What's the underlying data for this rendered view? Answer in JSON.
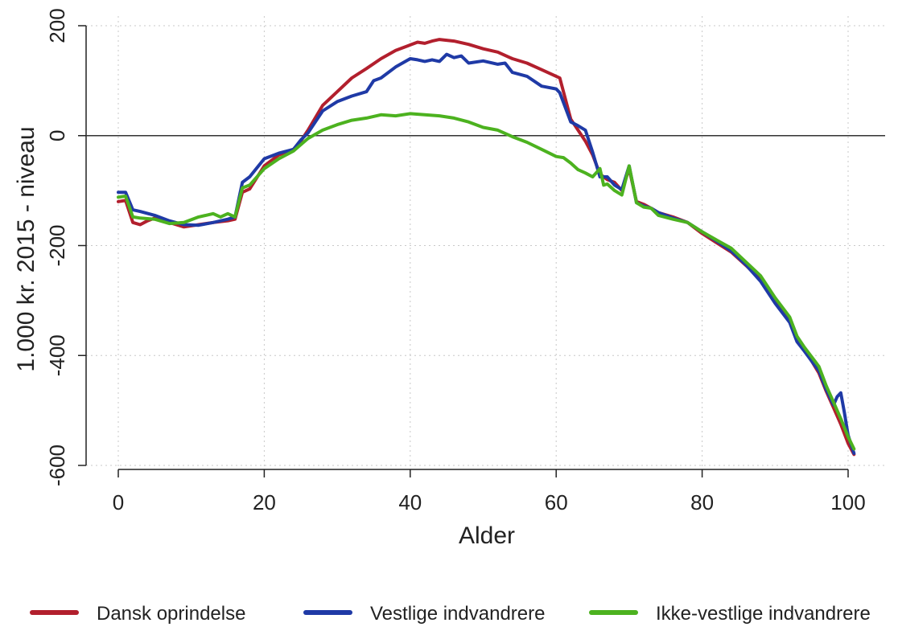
{
  "chart_data": {
    "type": "line",
    "xlabel": "Alder",
    "ylabel": "1.000 kr. 2015 - niveau",
    "xlim": [
      0,
      101
    ],
    "ylim": [
      -600,
      200
    ],
    "x_ticks": [
      0,
      20,
      40,
      60,
      80,
      100
    ],
    "y_ticks": [
      -600,
      -400,
      -200,
      0,
      200
    ],
    "grid": true,
    "reference_line": 0,
    "legend_position": "bottom",
    "series": [
      {
        "name": "Dansk oprindelse",
        "color": "#b21f2d",
        "points": [
          [
            0,
            -120
          ],
          [
            1,
            -118
          ],
          [
            2,
            -158
          ],
          [
            3,
            -162
          ],
          [
            4,
            -155
          ],
          [
            5,
            -150
          ],
          [
            7,
            -158
          ],
          [
            9,
            -166
          ],
          [
            11,
            -162
          ],
          [
            13,
            -158
          ],
          [
            15,
            -155
          ],
          [
            16,
            -152
          ],
          [
            17,
            -103
          ],
          [
            18,
            -97
          ],
          [
            20,
            -55
          ],
          [
            22,
            -35
          ],
          [
            24,
            -25
          ],
          [
            25,
            -10
          ],
          [
            26,
            10
          ],
          [
            28,
            55
          ],
          [
            30,
            80
          ],
          [
            32,
            105
          ],
          [
            34,
            122
          ],
          [
            36,
            140
          ],
          [
            38,
            155
          ],
          [
            40,
            165
          ],
          [
            41,
            170
          ],
          [
            42,
            168
          ],
          [
            43,
            172
          ],
          [
            44,
            175
          ],
          [
            46,
            172
          ],
          [
            48,
            166
          ],
          [
            50,
            158
          ],
          [
            52,
            152
          ],
          [
            54,
            140
          ],
          [
            56,
            132
          ],
          [
            58,
            120
          ],
          [
            60,
            108
          ],
          [
            60.5,
            105
          ],
          [
            62,
            30
          ],
          [
            63,
            10
          ],
          [
            64,
            -10
          ],
          [
            65,
            -35
          ],
          [
            66,
            -70
          ],
          [
            67,
            -80
          ],
          [
            68,
            -85
          ],
          [
            69,
            -100
          ],
          [
            70,
            -60
          ],
          [
            71,
            -120
          ],
          [
            72,
            -125
          ],
          [
            73,
            -132
          ],
          [
            74,
            -140
          ],
          [
            76,
            -148
          ],
          [
            78,
            -158
          ],
          [
            80,
            -178
          ],
          [
            82,
            -195
          ],
          [
            84,
            -212
          ],
          [
            86,
            -236
          ],
          [
            88,
            -262
          ],
          [
            90,
            -300
          ],
          [
            92,
            -338
          ],
          [
            93,
            -372
          ],
          [
            94,
            -388
          ],
          [
            96,
            -432
          ],
          [
            97,
            -465
          ],
          [
            98,
            -495
          ],
          [
            99,
            -525
          ],
          [
            100,
            -560
          ],
          [
            100.8,
            -580
          ]
        ]
      },
      {
        "name": "Vestlige indvandrere",
        "color": "#1f3aa6",
        "points": [
          [
            0,
            -103
          ],
          [
            1,
            -103
          ],
          [
            2,
            -135
          ],
          [
            3,
            -138
          ],
          [
            5,
            -145
          ],
          [
            7,
            -155
          ],
          [
            9,
            -162
          ],
          [
            11,
            -163
          ],
          [
            13,
            -158
          ],
          [
            15,
            -152
          ],
          [
            16,
            -148
          ],
          [
            17,
            -85
          ],
          [
            18,
            -75
          ],
          [
            20,
            -42
          ],
          [
            22,
            -32
          ],
          [
            24,
            -25
          ],
          [
            25,
            -8
          ],
          [
            26,
            5
          ],
          [
            28,
            45
          ],
          [
            30,
            62
          ],
          [
            32,
            72
          ],
          [
            34,
            80
          ],
          [
            35,
            100
          ],
          [
            36,
            105
          ],
          [
            38,
            125
          ],
          [
            40,
            140
          ],
          [
            41,
            138
          ],
          [
            42,
            135
          ],
          [
            43,
            138
          ],
          [
            44,
            135
          ],
          [
            45,
            148
          ],
          [
            46,
            142
          ],
          [
            47,
            145
          ],
          [
            48,
            132
          ],
          [
            50,
            136
          ],
          [
            52,
            130
          ],
          [
            53,
            132
          ],
          [
            54,
            115
          ],
          [
            56,
            108
          ],
          [
            58,
            90
          ],
          [
            60,
            85
          ],
          [
            60.5,
            78
          ],
          [
            62,
            25
          ],
          [
            63,
            18
          ],
          [
            64,
            10
          ],
          [
            65,
            -30
          ],
          [
            66,
            -75
          ],
          [
            67,
            -75
          ],
          [
            68,
            -90
          ],
          [
            69,
            -98
          ],
          [
            70,
            -55
          ],
          [
            71,
            -122
          ],
          [
            72,
            -128
          ],
          [
            73,
            -132
          ],
          [
            74,
            -140
          ],
          [
            76,
            -150
          ],
          [
            78,
            -158
          ],
          [
            80,
            -175
          ],
          [
            82,
            -192
          ],
          [
            84,
            -210
          ],
          [
            86,
            -235
          ],
          [
            88,
            -265
          ],
          [
            90,
            -305
          ],
          [
            92,
            -340
          ],
          [
            93,
            -375
          ],
          [
            94,
            -392
          ],
          [
            96,
            -428
          ],
          [
            97,
            -462
          ],
          [
            98,
            -490
          ],
          [
            98.5,
            -475
          ],
          [
            99,
            -468
          ],
          [
            99.5,
            -505
          ],
          [
            100,
            -545
          ],
          [
            100.8,
            -578
          ]
        ]
      },
      {
        "name": "Ikke-vestlige indvandrere",
        "color": "#4cb21f",
        "points": [
          [
            0,
            -112
          ],
          [
            1,
            -110
          ],
          [
            2,
            -148
          ],
          [
            3,
            -150
          ],
          [
            5,
            -152
          ],
          [
            7,
            -160
          ],
          [
            9,
            -158
          ],
          [
            11,
            -148
          ],
          [
            12,
            -145
          ],
          [
            13,
            -142
          ],
          [
            14,
            -148
          ],
          [
            15,
            -142
          ],
          [
            16,
            -148
          ],
          [
            17,
            -95
          ],
          [
            18,
            -90
          ],
          [
            20,
            -60
          ],
          [
            22,
            -42
          ],
          [
            24,
            -28
          ],
          [
            26,
            -5
          ],
          [
            28,
            10
          ],
          [
            30,
            20
          ],
          [
            32,
            28
          ],
          [
            34,
            32
          ],
          [
            36,
            38
          ],
          [
            38,
            36
          ],
          [
            40,
            40
          ],
          [
            42,
            38
          ],
          [
            44,
            36
          ],
          [
            46,
            32
          ],
          [
            48,
            25
          ],
          [
            50,
            15
          ],
          [
            52,
            10
          ],
          [
            54,
            -2
          ],
          [
            56,
            -12
          ],
          [
            58,
            -25
          ],
          [
            60,
            -38
          ],
          [
            61,
            -40
          ],
          [
            62,
            -50
          ],
          [
            63,
            -62
          ],
          [
            64,
            -68
          ],
          [
            65,
            -75
          ],
          [
            66,
            -60
          ],
          [
            66.5,
            -90
          ],
          [
            67,
            -88
          ],
          [
            68,
            -100
          ],
          [
            69,
            -108
          ],
          [
            70,
            -55
          ],
          [
            71,
            -122
          ],
          [
            72,
            -130
          ],
          [
            73,
            -132
          ],
          [
            74,
            -145
          ],
          [
            76,
            -152
          ],
          [
            78,
            -158
          ],
          [
            80,
            -175
          ],
          [
            82,
            -190
          ],
          [
            84,
            -205
          ],
          [
            86,
            -230
          ],
          [
            88,
            -255
          ],
          [
            90,
            -295
          ],
          [
            92,
            -330
          ],
          [
            93,
            -365
          ],
          [
            94,
            -385
          ],
          [
            96,
            -420
          ],
          [
            97,
            -455
          ],
          [
            98,
            -485
          ],
          [
            99,
            -515
          ],
          [
            100,
            -548
          ],
          [
            100.8,
            -570
          ]
        ]
      }
    ]
  }
}
